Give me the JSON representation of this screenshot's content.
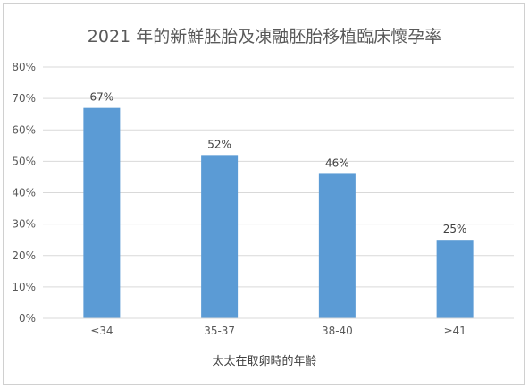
{
  "chart_data": {
    "type": "bar",
    "title": "2021 年的新鮮胚胎及凍融胚胎移植臨床懷孕率",
    "xlabel": "太太在取卵時的年齡",
    "ylabel": "",
    "categories": [
      "≤34",
      "35-37",
      "38-40",
      "≥41"
    ],
    "values": [
      67,
      52,
      46,
      25
    ],
    "data_labels": [
      "67%",
      "52%",
      "46%",
      "25%"
    ],
    "ylim": [
      0,
      80
    ],
    "yticks": [
      "0%",
      "10%",
      "20%",
      "30%",
      "40%",
      "50%",
      "60%",
      "70%",
      "80%"
    ],
    "grid": true,
    "legend": "none",
    "bar_color": "#5b9bd5"
  }
}
